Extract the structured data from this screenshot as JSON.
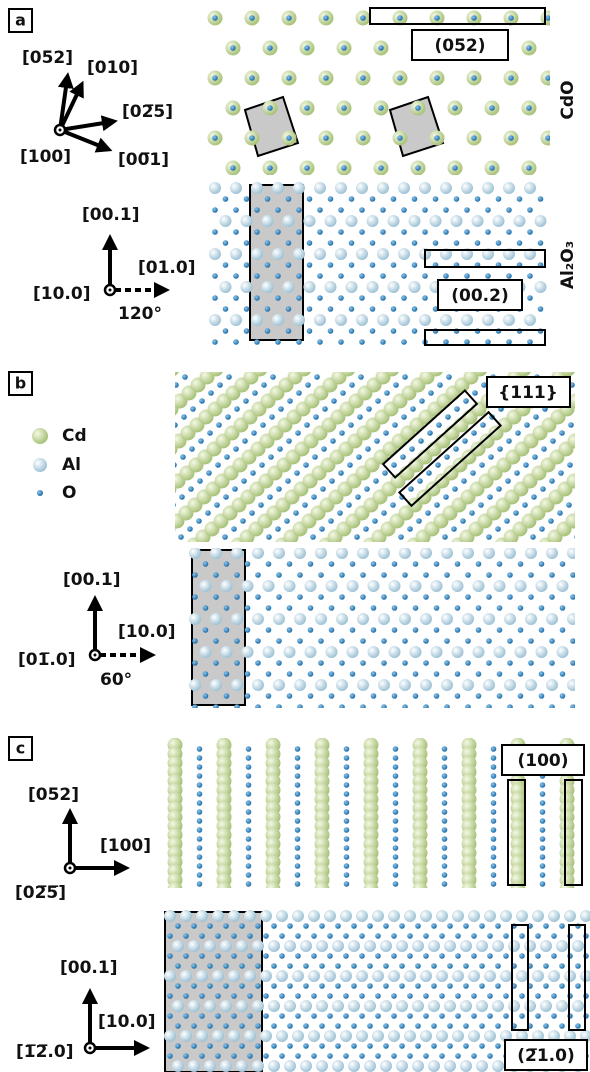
{
  "panels": [
    {
      "label": "a",
      "directions": [
        "[052]",
        "[010]",
        "[02̅5]",
        "[100]",
        "[00̅1]"
      ],
      "phases": [
        "CdO",
        "Al₂O₃"
      ],
      "planes": [
        "(052)",
        "(00.2)"
      ],
      "substrate_directions": [
        "[00.1]",
        "[01.0]",
        "[10.0]"
      ],
      "angle": "120°"
    },
    {
      "label": "b",
      "legend": [
        "Cd",
        "Al",
        "O"
      ],
      "planes": [
        "{111}"
      ],
      "substrate_directions": [
        "[00.1]",
        "[10.0]",
        "[01̅.0]"
      ],
      "angle": "60°"
    },
    {
      "label": "c",
      "directions": [
        "[052]",
        "[100]",
        "[02̅5̅]"
      ],
      "planes": [
        "(100)",
        "(2̅1.0)"
      ],
      "substrate_directions": [
        "[00.1]",
        "[10.0]",
        "[1̅2̅.0]"
      ]
    }
  ]
}
